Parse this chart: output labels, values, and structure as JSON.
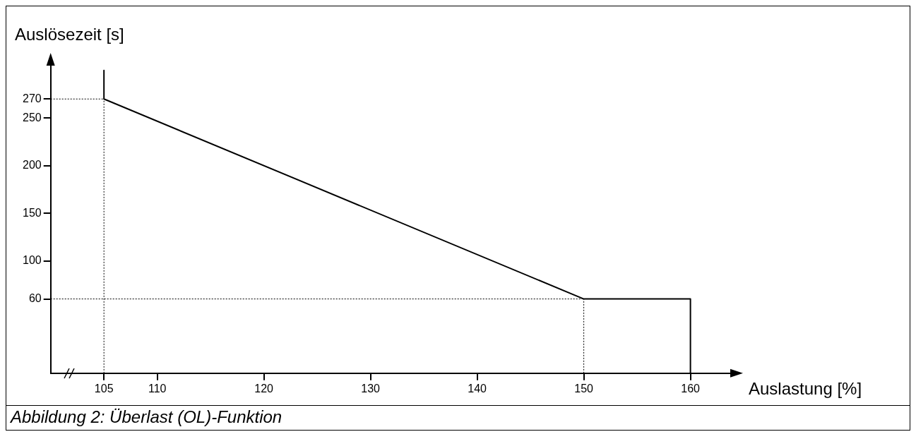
{
  "chart_data": {
    "type": "line",
    "xlabel": "Auslastung [%]",
    "ylabel": "Auslösezeit [s]",
    "annotations": [
      "Abbildung 2:  Überlast (OL)-Funktion"
    ],
    "series": [
      {
        "color": "#000000",
        "x": [
          105,
          105,
          150,
          160,
          160
        ],
        "values": [
          300,
          270,
          60,
          60,
          -18
        ]
      },
      {
        "color": "#000000",
        "line_style": "dotted",
        "x": [
          100,
          105
        ],
        "values": [
          270,
          270
        ]
      },
      {
        "color": "#000000",
        "line_style": "dotted",
        "x": [
          100,
          150
        ],
        "values": [
          60,
          60
        ]
      },
      {
        "color": "#000000",
        "line_style": "dotted",
        "x": [
          105,
          105
        ],
        "values": [
          -18,
          270
        ]
      },
      {
        "color": "#000000",
        "line_style": "dotted",
        "x": [
          150,
          150
        ],
        "values": [
          -18,
          60
        ]
      }
    ],
    "xlim": [
      100,
      164
    ],
    "ylim": [
      -18,
      308
    ],
    "xticks": [
      105,
      110,
      120,
      130,
      140,
      150,
      160
    ],
    "yticks": [
      60,
      100,
      150,
      200,
      250,
      270
    ],
    "grid": false,
    "legend": false,
    "marker": "none",
    "line_style": "solid"
  }
}
